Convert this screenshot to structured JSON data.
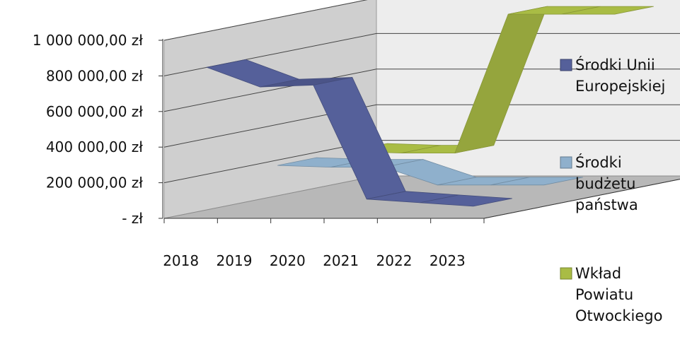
{
  "chart_data": {
    "type": "line",
    "title": "",
    "xlabel": "",
    "ylabel": "",
    "categories": [
      "2018",
      "2019",
      "2020",
      "2021",
      "2022",
      "2023"
    ],
    "y_ticks": [
      "-   zł",
      "200 000,00 zł",
      "400 000,00 zł",
      "600 000,00 zł",
      "800 000,00 zł",
      "1 000 000,00 zł"
    ],
    "ylim": [
      0,
      1000000
    ],
    "grid": true,
    "legend_position": "right",
    "series": [
      {
        "name": "Środki Unii Europejskiej",
        "name_lines": [
          "Środki Unii",
          "Europejskiej"
        ],
        "color": "#55609a",
        "values": [
          830000,
          720000,
          730000,
          90000,
          70000,
          50000
        ]
      },
      {
        "name": "Środki budżetu państwa",
        "name_lines": [
          "Środki",
          "budżetu",
          "państwa"
        ],
        "color": "#8fb0cc",
        "values": [
          200000,
          190000,
          190000,
          90000,
          90000,
          90000
        ]
      },
      {
        "name": "Wkład Powiatu Otwockiego",
        "name_lines": [
          "Wkład",
          "Powiatu",
          "Otwockiego"
        ],
        "color": "#a9bc45",
        "values": [
          200000,
          190000,
          190000,
          970000,
          970000,
          970000
        ]
      }
    ]
  }
}
